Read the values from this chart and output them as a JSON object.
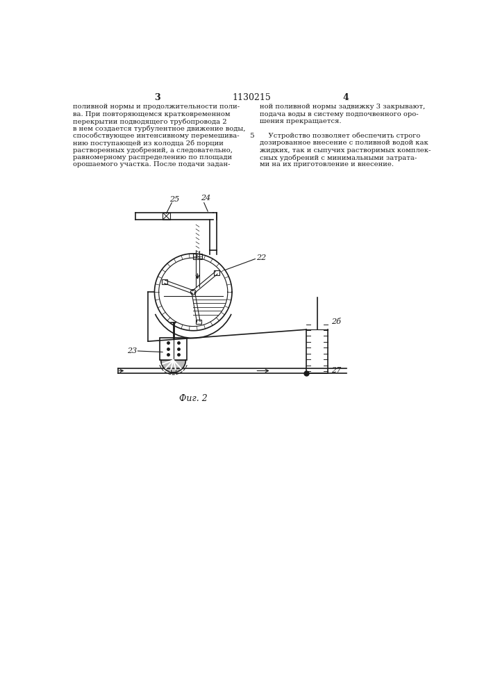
{
  "title": "1130215",
  "page_left": "3",
  "page_right": "4",
  "fig_label": "Фиг. 2",
  "text_left_lines": [
    "поливной нормы и продолжительности поли-",
    "ва. При повторяющемся кратковременном",
    "перекрытии подводящего трубопровода 2",
    "в нем создается турбулентное движение воды,",
    "способствующее интенсивному перемешива-",
    "нию поступающей из колодца 2б порции",
    "растворенных удобрений, а следовательно,",
    "равномерному распределению по площади",
    "орошаемого участка. После подачи задан-"
  ],
  "text_right_lines": [
    "ной поливной нормы задвижку 3 закрывают,",
    "подача воды в систему подпочвенного оро-",
    "шения прекращается.",
    "",
    "    Устройство позволяет обеспечить строго",
    "дозированное внесение с поливной водой как",
    "жидких, так и сыпучих растворимых комплек-",
    "сных удобрений с минимальными затрата-",
    "ми на их приготовление и внесение."
  ],
  "line_color": "#1a1a1a",
  "bg_color": "#ffffff",
  "text_color": "#1a1a1a",
  "lw_thin": 0.8,
  "lw_med": 1.2,
  "lw_thick": 1.8
}
